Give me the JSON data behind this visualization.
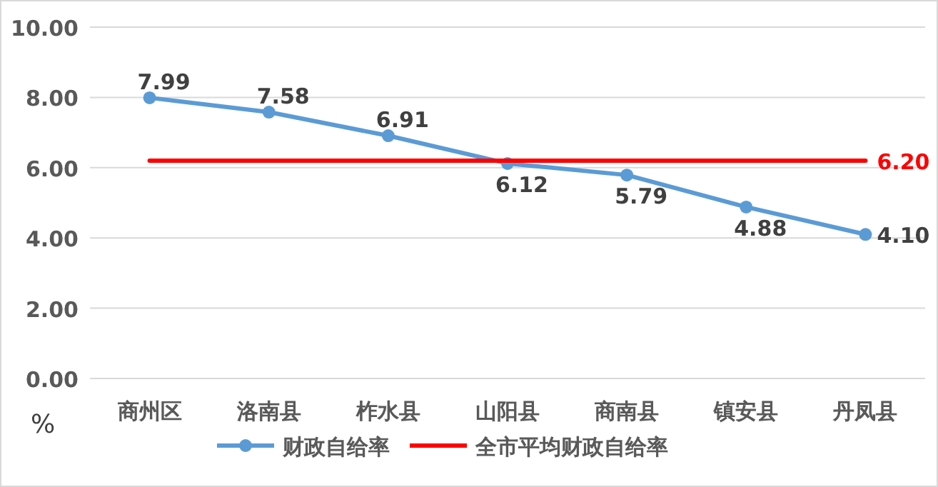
{
  "chart_data": {
    "type": "line",
    "ylabel": "%",
    "categories": [
      "商州区",
      "洛南县",
      "柞水县",
      "山阳县",
      "商南县",
      "镇安县",
      "丹凤县"
    ],
    "series": [
      {
        "name": "财政自给率",
        "color": "#5b9bd5",
        "marker": "circle",
        "values": [
          7.99,
          7.58,
          6.91,
          6.12,
          5.79,
          4.88,
          4.1
        ],
        "value_labels": [
          "7.99",
          "7.58",
          "6.91",
          "6.12",
          "5.79",
          "4.88",
          "4.10"
        ]
      },
      {
        "name": "全市平均财政自给率",
        "color": "#ff0000",
        "marker": "none",
        "values": [
          6.2,
          6.2,
          6.2,
          6.2,
          6.2,
          6.2,
          6.2
        ],
        "value_labels": [
          null,
          null,
          null,
          null,
          null,
          null,
          "6.20"
        ]
      }
    ],
    "ylim": [
      0,
      10
    ],
    "yticks": [
      {
        "value": 0,
        "label": "0.00"
      },
      {
        "value": 2,
        "label": "2.00"
      },
      {
        "value": 4,
        "label": "4.00"
      },
      {
        "value": 6,
        "label": "6.00"
      },
      {
        "value": 8,
        "label": "8.00"
      },
      {
        "value": 10,
        "label": "10.00"
      }
    ],
    "grid": "y",
    "legend": "bottom"
  }
}
